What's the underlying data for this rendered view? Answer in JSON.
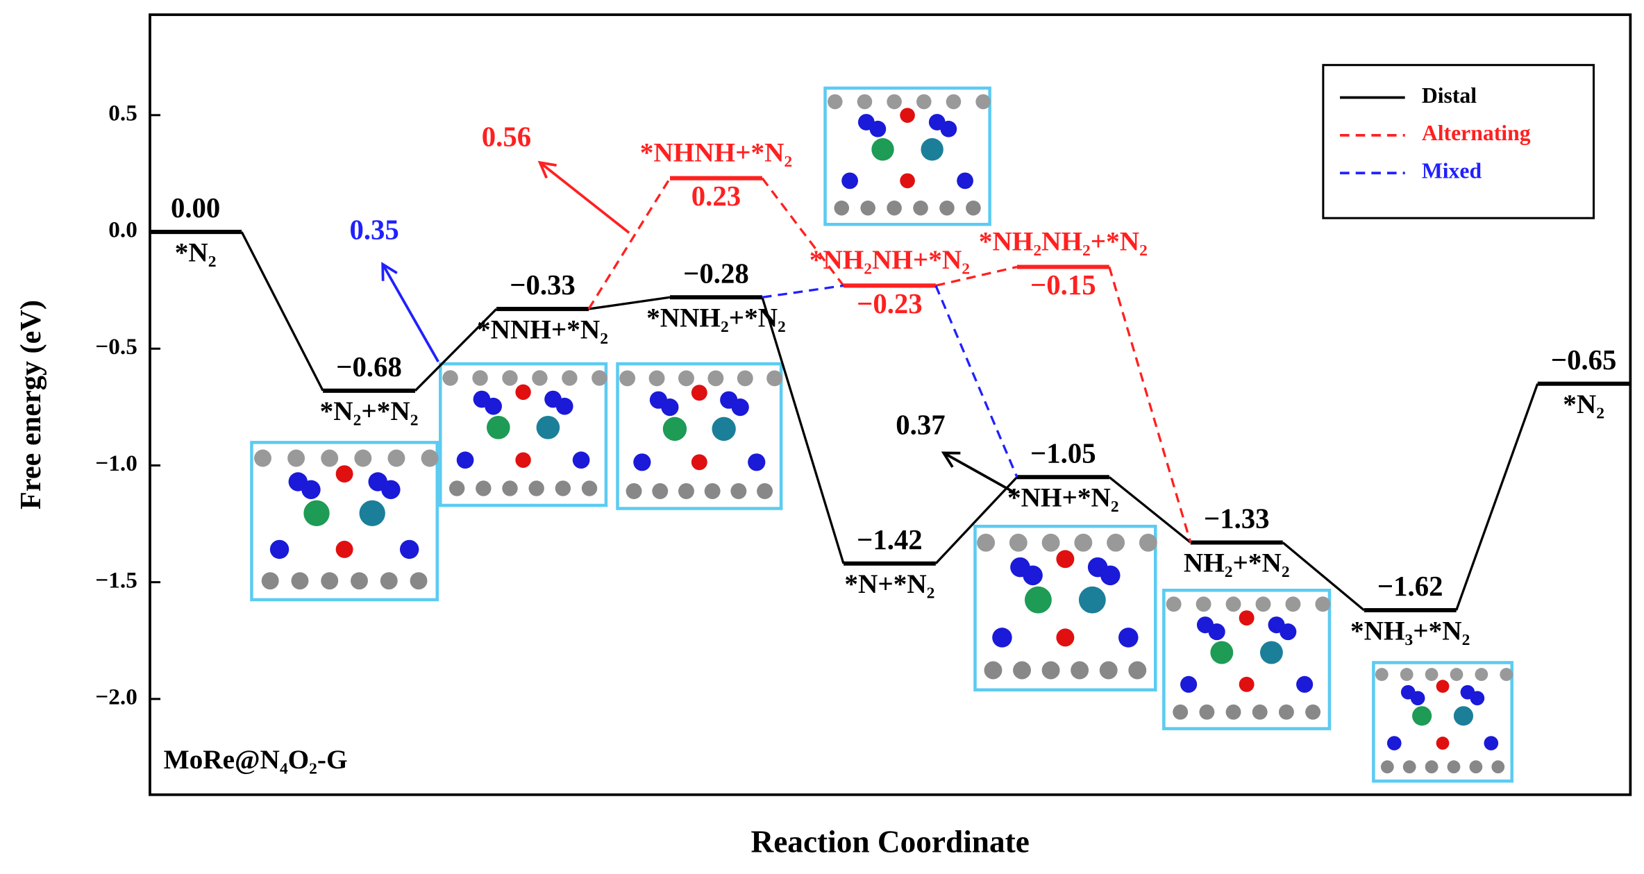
{
  "chart_data": {
    "type": "energy-profile",
    "ylabel": "Free energy (eV)",
    "xlabel": "Reaction Coordinate",
    "annotation": "MoRe@N₄O₂-G",
    "ylim": [
      -2.41,
      0.93
    ],
    "yticks": [
      {
        "value": 0.5,
        "label": "0.5"
      },
      {
        "value": 0,
        "label": "0.0"
      },
      {
        "value": -0.5,
        "label": "−0.5"
      },
      {
        "value": -1,
        "label": "−1.0"
      },
      {
        "value": -1.5,
        "label": "−1.5"
      },
      {
        "value": -2,
        "label": "−2.0"
      }
    ],
    "legend": "upper right",
    "series": [
      {
        "name": "Distal",
        "color": "#000000",
        "dashed": false,
        "values": [
          0,
          -0.68,
          -0.33,
          -0.28,
          -1.42,
          -1.05,
          -1.33,
          -1.62,
          -0.65
        ],
        "value_labels": [
          "0.00",
          "−0.68",
          "−0.33",
          "−0.28",
          "−1.42",
          "−1.05",
          "−1.33",
          "−1.62",
          "−0.65"
        ],
        "states": [
          "*N₂",
          "*N₂+*N₂",
          "*NNH+*N₂",
          "*NNH₂+*N₂",
          "*N+*N₂",
          "*NH+*N₂",
          "NH₂+*N₂",
          "*NH₃+*N₂",
          "*N₂"
        ]
      },
      {
        "name": "Alternating",
        "color": "#ff2020",
        "dashed": true,
        "values": [
          null,
          null,
          -0.33,
          0.23,
          -0.23,
          -0.15,
          -1.33,
          null,
          null
        ],
        "value_labels": [
          null,
          null,
          null,
          "0.23",
          "−0.23",
          "−0.15",
          null,
          null,
          null
        ],
        "states": [
          null,
          null,
          null,
          "*NHNH+*N₂",
          "*NH₂NH+*N₂",
          "*NH₂NH₂+*N₂",
          null,
          null,
          null
        ]
      },
      {
        "name": "Mixed",
        "color": "#2020ff",
        "dashed": true,
        "values": [
          null,
          null,
          null,
          -0.28,
          -0.23,
          -1.05,
          null,
          null,
          null
        ]
      }
    ],
    "barriers": [
      {
        "value": 0.35,
        "color": "#2020ff"
      },
      {
        "value": 0.56,
        "color": "#ff2020"
      },
      {
        "value": 0.37,
        "color": "#000000"
      }
    ]
  }
}
